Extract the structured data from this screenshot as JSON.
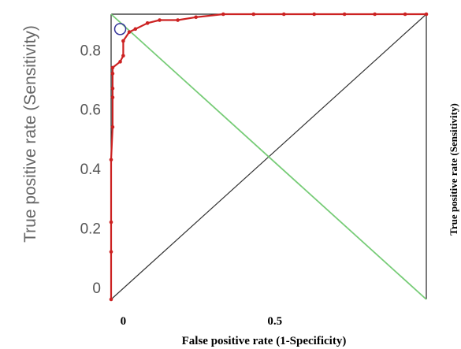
{
  "chart_data": {
    "type": "line",
    "title": "",
    "xlabel": "False positive rate (1-Specificity)",
    "ylabel": "True positive rate (Sensitivity)",
    "ylabel_right": "True positive rate (Sensitivity)",
    "xlim": [
      -0.04,
      1.0
    ],
    "ylim": [
      -0.04,
      0.92
    ],
    "x_ticks": [
      0,
      0.5
    ],
    "x_tick_labels": [
      "0",
      "0.5"
    ],
    "y_ticks": [
      0,
      0.2,
      0.4,
      0.6,
      0.8
    ],
    "y_tick_labels": [
      "0",
      "0.2",
      "0.4",
      "0.6",
      "0.8"
    ],
    "grid": false,
    "series": [
      {
        "color": "#cc2222",
        "points": [
          [
            -0.04,
            -0.04
          ],
          [
            -0.04,
            0.12
          ],
          [
            -0.04,
            0.22
          ],
          [
            -0.04,
            0.43
          ],
          [
            -0.035,
            0.54
          ],
          [
            -0.035,
            0.64
          ],
          [
            -0.035,
            0.67
          ],
          [
            -0.035,
            0.72
          ],
          [
            -0.035,
            0.74
          ],
          [
            -0.01,
            0.76
          ],
          [
            0.0,
            0.78
          ],
          [
            0.0,
            0.83
          ],
          [
            0.02,
            0.86
          ],
          [
            0.04,
            0.87
          ],
          [
            0.08,
            0.89
          ],
          [
            0.12,
            0.9
          ],
          [
            0.18,
            0.9
          ],
          [
            0.24,
            0.91
          ],
          [
            0.33,
            0.92
          ],
          [
            0.43,
            0.92
          ],
          [
            0.53,
            0.92
          ],
          [
            0.63,
            0.92
          ],
          [
            0.73,
            0.92
          ],
          [
            0.83,
            0.92
          ],
          [
            0.93,
            0.92
          ],
          [
            1.0,
            0.92
          ]
        ]
      }
    ],
    "chance_line": {
      "color": "#333333",
      "from": [
        -0.04,
        -0.04
      ],
      "to": [
        1.0,
        0.92
      ]
    },
    "cutoff_line": {
      "color": "#77cc77",
      "from": [
        -0.04,
        0.92
      ],
      "to": [
        1.0,
        -0.04
      ]
    },
    "optimal_point": {
      "x": -0.01,
      "y": 0.87,
      "color": "#333399"
    }
  }
}
